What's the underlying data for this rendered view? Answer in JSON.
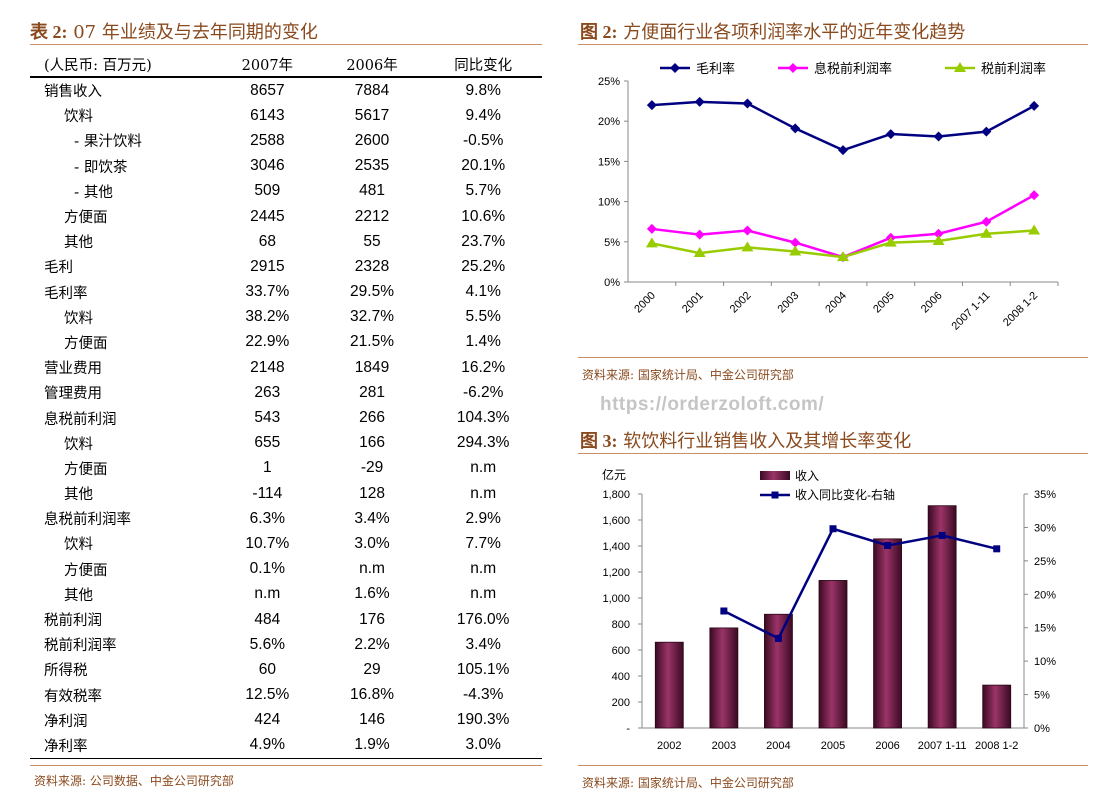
{
  "table": {
    "title_prefix": "表 2:",
    "title_text": "07 年业绩及与去年同期的变化",
    "headers": [
      "(人民币: 百万元)",
      "2007年",
      "2006年",
      "同比变化"
    ],
    "rows": [
      {
        "label": "销售收入",
        "indent": 0,
        "v2007": "8657",
        "v2006": "7884",
        "change": "9.8%"
      },
      {
        "label": "饮料",
        "indent": 1,
        "v2007": "6143",
        "v2006": "5617",
        "change": "9.4%"
      },
      {
        "label": "- 果汁饮料",
        "indent": 2,
        "v2007": "2588",
        "v2006": "2600",
        "change": "-0.5%"
      },
      {
        "label": "- 即饮茶",
        "indent": 2,
        "v2007": "3046",
        "v2006": "2535",
        "change": "20.1%"
      },
      {
        "label": "- 其他",
        "indent": 2,
        "v2007": "509",
        "v2006": "481",
        "change": "5.7%"
      },
      {
        "label": "方便面",
        "indent": 1,
        "v2007": "2445",
        "v2006": "2212",
        "change": "10.6%"
      },
      {
        "label": "其他",
        "indent": 1,
        "v2007": "68",
        "v2006": "55",
        "change": "23.7%"
      },
      {
        "label": "毛利",
        "indent": 0,
        "v2007": "2915",
        "v2006": "2328",
        "change": "25.2%"
      },
      {
        "label": "毛利率",
        "indent": 0,
        "v2007": "33.7%",
        "v2006": "29.5%",
        "change": "4.1%"
      },
      {
        "label": "饮料",
        "indent": 1,
        "v2007": "38.2%",
        "v2006": "32.7%",
        "change": "5.5%"
      },
      {
        "label": "方便面",
        "indent": 1,
        "v2007": "22.9%",
        "v2006": "21.5%",
        "change": "1.4%"
      },
      {
        "label": "营业费用",
        "indent": 0,
        "v2007": "2148",
        "v2006": "1849",
        "change": "16.2%"
      },
      {
        "label": "管理费用",
        "indent": 0,
        "v2007": "263",
        "v2006": "281",
        "change": "-6.2%"
      },
      {
        "label": "息税前利润",
        "indent": 0,
        "v2007": "543",
        "v2006": "266",
        "change": "104.3%"
      },
      {
        "label": "饮料",
        "indent": 1,
        "v2007": "655",
        "v2006": "166",
        "change": "294.3%"
      },
      {
        "label": "方便面",
        "indent": 1,
        "v2007": "1",
        "v2006": "-29",
        "change": "n.m"
      },
      {
        "label": "其他",
        "indent": 1,
        "v2007": "-114",
        "v2006": "128",
        "change": "n.m"
      },
      {
        "label": "息税前利润率",
        "indent": 0,
        "v2007": "6.3%",
        "v2006": "3.4%",
        "change": "2.9%"
      },
      {
        "label": "饮料",
        "indent": 1,
        "v2007": "10.7%",
        "v2006": "3.0%",
        "change": "7.7%"
      },
      {
        "label": "方便面",
        "indent": 1,
        "v2007": "0.1%",
        "v2006": "n.m",
        "change": "n.m"
      },
      {
        "label": "其他",
        "indent": 1,
        "v2007": "n.m",
        "v2006": "1.6%",
        "change": "n.m"
      },
      {
        "label": "税前利润",
        "indent": 0,
        "v2007": "484",
        "v2006": "176",
        "change": "176.0%"
      },
      {
        "label": "税前利润率",
        "indent": 0,
        "v2007": "5.6%",
        "v2006": "2.2%",
        "change": "3.4%"
      },
      {
        "label": "所得税",
        "indent": 0,
        "v2007": "60",
        "v2006": "29",
        "change": "105.1%"
      },
      {
        "label": "有效税率",
        "indent": 0,
        "v2007": "12.5%",
        "v2006": "16.8%",
        "change": "-4.3%"
      },
      {
        "label": "净利润",
        "indent": 0,
        "v2007": "424",
        "v2006": "146",
        "change": "190.3%"
      },
      {
        "label": "净利率",
        "indent": 0,
        "v2007": "4.9%",
        "v2006": "1.9%",
        "change": "3.0%"
      }
    ],
    "source": "资料来源: 公司数据、中金公司研究部"
  },
  "watermark": "https://orderzoloft.com/",
  "colors": {
    "title": "#8a4a1e",
    "rule": "#c98e6a"
  },
  "chart_data": [
    {
      "id": "fig2",
      "type": "line",
      "title_prefix": "图 2:",
      "title": "方便面行业各项利润率水平的近年变化趋势",
      "categories": [
        "2000",
        "2001",
        "2002",
        "2003",
        "2004",
        "2005",
        "2006",
        "2007 1-11",
        "2008 1-2"
      ],
      "ylim": [
        0,
        25
      ],
      "yticks": [
        "0%",
        "5%",
        "10%",
        "15%",
        "20%",
        "25%"
      ],
      "legend": "top",
      "series": [
        {
          "name": "毛利率",
          "color": "#000080",
          "marker": "diamond",
          "values": [
            22.0,
            22.4,
            22.2,
            19.1,
            16.4,
            18.4,
            18.1,
            18.7,
            21.9
          ]
        },
        {
          "name": "息税前利润率",
          "color": "#ff00ff",
          "marker": "diamond",
          "values": [
            6.6,
            5.9,
            6.4,
            4.9,
            3.1,
            5.5,
            6.0,
            7.5,
            10.8
          ]
        },
        {
          "name": "税前利润率",
          "color": "#99cc00",
          "marker": "triangle",
          "values": [
            4.8,
            3.6,
            4.3,
            3.8,
            3.1,
            4.9,
            5.1,
            6.0,
            6.4
          ]
        }
      ],
      "source": "资料来源: 国家统计局、中金公司研究部"
    },
    {
      "id": "fig3",
      "type": "bar",
      "title_prefix": "图 3:",
      "title": "软饮料行业销售收入及其增长率变化",
      "categories": [
        "2002",
        "2003",
        "2004",
        "2005",
        "2006",
        "2007 1-11",
        "2008 1-2"
      ],
      "ylabel": "亿元",
      "ylim": [
        0,
        1800
      ],
      "yticks": [
        "-",
        "200",
        "400",
        "600",
        "800",
        "1,000",
        "1,200",
        "1,400",
        "1,600",
        "1,800"
      ],
      "y2lim": [
        0,
        35
      ],
      "y2ticks": [
        "0%",
        "5%",
        "10%",
        "15%",
        "20%",
        "25%",
        "30%",
        "35%"
      ],
      "legend": "top",
      "series": [
        {
          "name": "收入",
          "type": "bar",
          "color": "#8b2a5a",
          "values": [
            660,
            770,
            875,
            1135,
            1455,
            1710,
            330
          ]
        },
        {
          "name": "收入同比变化-右轴",
          "type": "line",
          "axis": "right",
          "color": "#000080",
          "marker": "square",
          "values": [
            null,
            17.5,
            13.4,
            29.8,
            27.3,
            28.8,
            26.8
          ]
        }
      ],
      "source": "资料来源: 国家统计局、中金公司研究部"
    }
  ]
}
